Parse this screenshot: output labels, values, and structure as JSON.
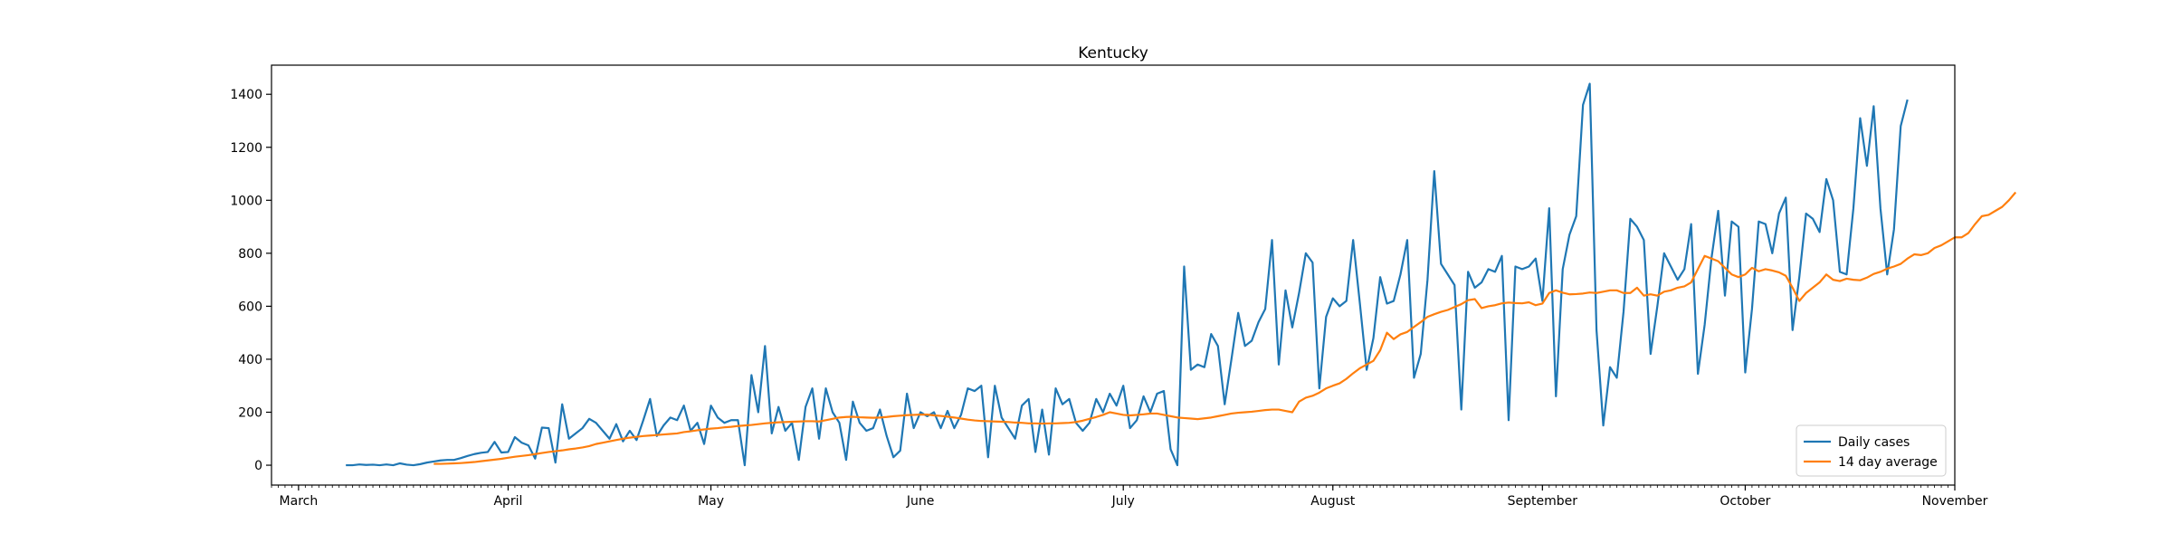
{
  "chart_data": {
    "type": "line",
    "title": "Kentucky",
    "xlabel": "",
    "ylabel": "",
    "x_axis": {
      "type": "date",
      "range": [
        "2020-02-26",
        "2020-11-01"
      ],
      "major_ticks": [
        {
          "date": "2020-03-01",
          "label": "March"
        },
        {
          "date": "2020-04-01",
          "label": "April"
        },
        {
          "date": "2020-05-01",
          "label": "May"
        },
        {
          "date": "2020-06-01",
          "label": "June"
        },
        {
          "date": "2020-07-01",
          "label": "July"
        },
        {
          "date": "2020-08-01",
          "label": "August"
        },
        {
          "date": "2020-09-01",
          "label": "September"
        },
        {
          "date": "2020-10-01",
          "label": "October"
        },
        {
          "date": "2020-11-01",
          "label": "November"
        }
      ],
      "minor_ticks": "daily"
    },
    "y_axis": {
      "range": [
        -75,
        1510
      ],
      "ticks": [
        0,
        200,
        400,
        600,
        800,
        1000,
        1200,
        1400
      ]
    },
    "grid": false,
    "legend": {
      "location": "lower right"
    },
    "colors": {
      "daily": "#1f77b4",
      "average": "#ff7f0e"
    },
    "series": [
      {
        "name": "Daily cases",
        "start_date": "2020-03-08",
        "values": [
          0,
          0,
          3,
          1,
          2,
          0,
          3,
          0,
          7,
          2,
          0,
          4,
          10,
          14,
          18,
          20,
          20,
          27,
          35,
          42,
          47,
          50,
          88,
          48,
          50,
          106,
          85,
          75,
          25,
          142,
          140,
          10,
          230,
          100,
          120,
          140,
          175,
          160,
          130,
          100,
          155,
          90,
          130,
          95,
          170,
          250,
          110,
          150,
          180,
          170,
          225,
          130,
          160,
          80,
          225,
          180,
          160,
          170,
          170,
          0,
          340,
          200,
          450,
          120,
          220,
          130,
          160,
          20,
          220,
          290,
          100,
          290,
          200,
          160,
          20,
          240,
          160,
          130,
          140,
          210,
          110,
          30,
          55,
          270,
          140,
          200,
          185,
          200,
          140,
          205,
          140,
          190,
          290,
          280,
          300,
          30,
          300,
          180,
          140,
          100,
          225,
          250,
          50,
          210,
          40,
          290,
          230,
          250,
          160,
          130,
          160,
          250,
          200,
          270,
          225,
          300,
          140,
          170,
          260,
          200,
          270,
          280,
          60,
          0,
          750,
          360,
          380,
          370,
          495,
          450,
          230,
          400,
          575,
          450,
          470,
          540,
          590,
          850,
          380,
          660,
          520,
          650,
          800,
          765,
          290,
          560,
          630,
          600,
          620,
          850,
          610,
          360,
          480,
          710,
          610,
          620,
          720,
          850,
          330,
          420,
          700,
          1110,
          760,
          720,
          680,
          210,
          730,
          670,
          690,
          740,
          730,
          790,
          170,
          750,
          740,
          750,
          780,
          620,
          970,
          260,
          740,
          870,
          940,
          1360,
          1440,
          510,
          150,
          370,
          330,
          580,
          930,
          900,
          850,
          420,
          600,
          800,
          750,
          700,
          740,
          910,
          345,
          530,
          780,
          960,
          640,
          920,
          900,
          350,
          590,
          920,
          910,
          800,
          950,
          1010,
          510,
          710,
          950,
          930,
          880,
          1080,
          1000,
          730,
          720,
          970,
          1310,
          1130,
          1355,
          970,
          720,
          890,
          1280,
          1380
        ]
      },
      {
        "name": "14 day average",
        "start_date": "2020-03-21",
        "values": [
          5,
          5,
          6,
          7,
          8,
          10,
          12,
          15,
          18,
          21,
          24,
          28,
          32,
          35,
          38,
          42,
          46,
          50,
          53,
          56,
          60,
          63,
          67,
          72,
          80,
          85,
          90,
          95,
          100,
          104,
          107,
          110,
          112,
          114,
          116,
          118,
          120,
          125,
          128,
          132,
          135,
          138,
          140,
          143,
          145,
          148,
          150,
          152,
          155,
          158,
          160,
          162,
          163,
          164,
          165,
          166,
          166,
          165,
          170,
          175,
          180,
          182,
          183,
          181,
          180,
          179,
          180,
          182,
          185,
          187,
          189,
          190,
          191,
          191,
          188,
          186,
          183,
          180,
          176,
          172,
          169,
          167,
          166,
          165,
          164,
          163,
          161,
          160,
          158,
          158,
          157,
          158,
          158,
          159,
          160,
          163,
          168,
          175,
          182,
          190,
          200,
          195,
          190,
          188,
          190,
          192,
          195,
          195,
          190,
          185,
          180,
          178,
          176,
          174,
          177,
          180,
          185,
          190,
          195,
          198,
          200,
          202,
          205,
          208,
          210,
          210,
          205,
          200,
          240,
          255,
          262,
          274,
          290,
          300,
          309,
          326,
          347,
          366,
          380,
          394,
          434,
          500,
          476,
          494,
          503,
          522,
          540,
          560,
          570,
          579,
          586,
          597,
          608,
          623,
          627,
          593,
          600,
          604,
          611,
          614,
          612,
          611,
          615,
          604,
          610,
          650,
          660,
          651,
          645,
          646,
          648,
          652,
          650,
          655,
          660,
          660,
          650,
          650,
          670,
          640,
          645,
          640,
          655,
          660,
          670,
          675,
          690,
          740,
          790,
          780,
          770,
          745,
          720,
          710,
          720,
          745,
          732,
          740,
          735,
          728,
          715,
          670,
          620,
          650,
          670,
          690,
          720,
          700,
          695,
          704,
          700,
          698,
          708,
          722,
          730,
          742,
          750,
          760,
          780,
          796,
          793,
          800,
          820,
          830,
          845,
          860,
          860,
          876,
          910,
          940,
          945,
          960,
          975,
          1000,
          1030
        ]
      }
    ]
  }
}
